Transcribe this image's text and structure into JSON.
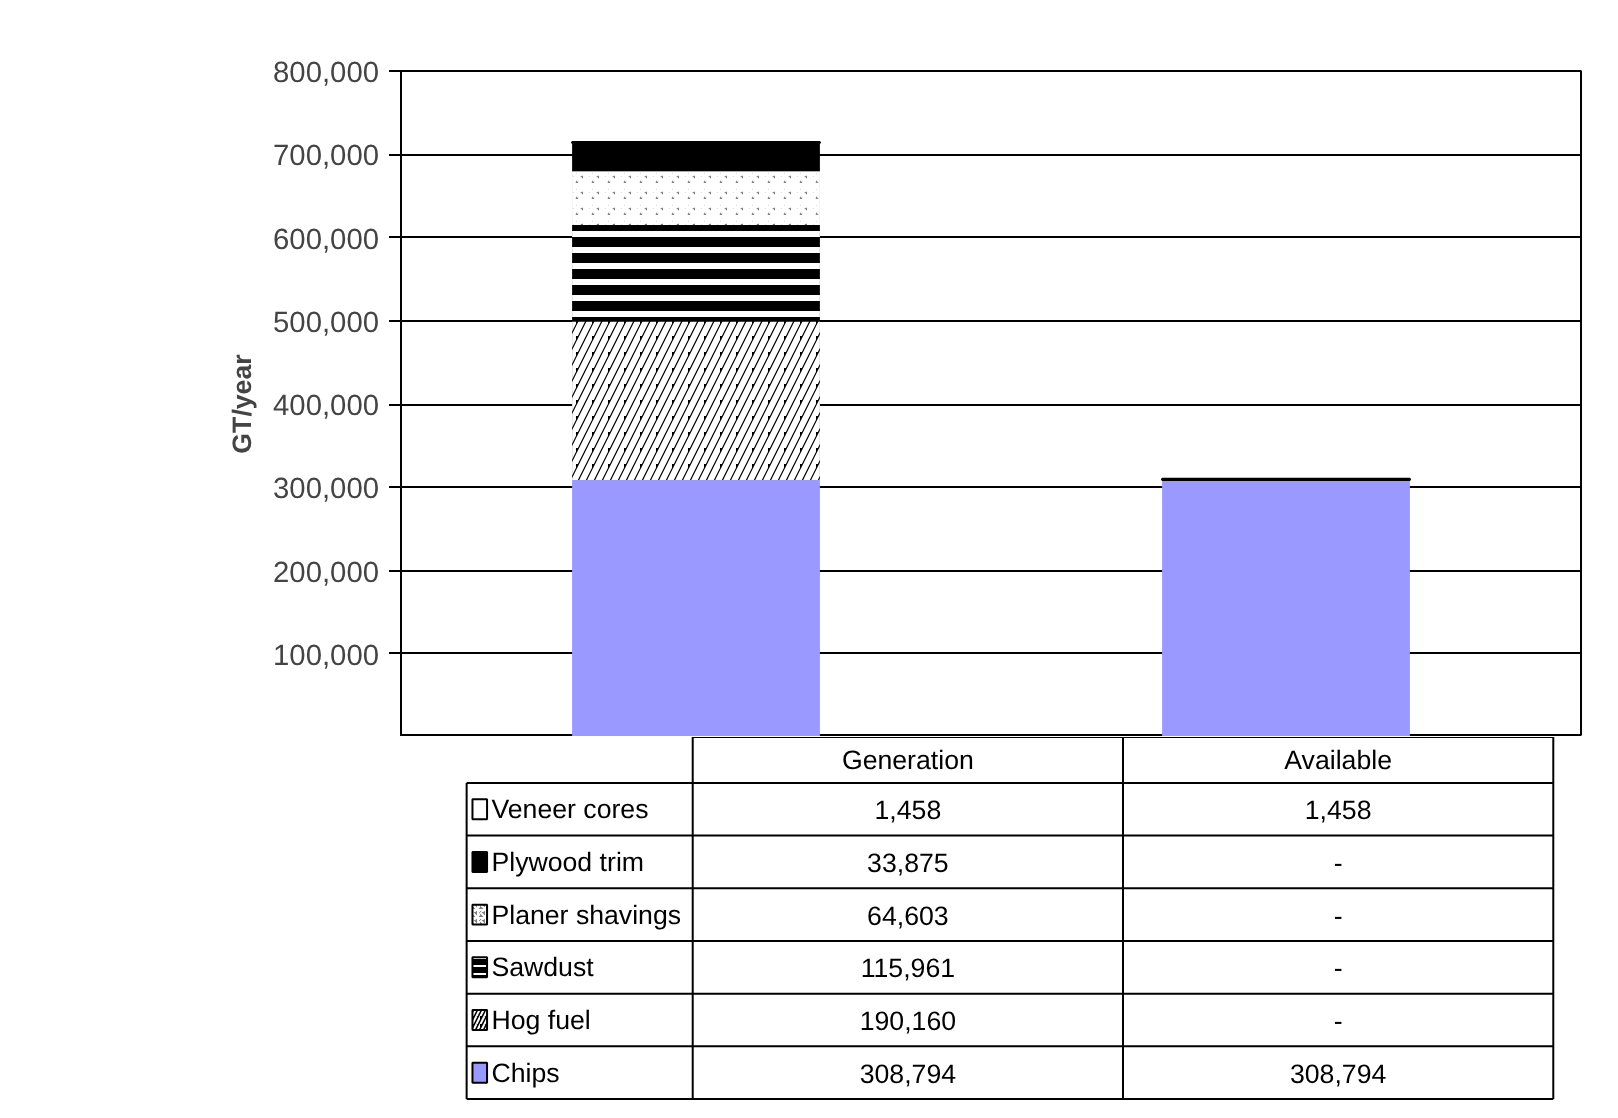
{
  "chart_data": {
    "type": "bar",
    "stacked": true,
    "ylabel": "GT/year",
    "categories": [
      "Generation",
      "Available"
    ],
    "ylim": [
      0,
      800000
    ],
    "yticks": [
      {
        "value": 100000,
        "label": "100,000"
      },
      {
        "value": 200000,
        "label": "200,000"
      },
      {
        "value": 300000,
        "label": "300,000"
      },
      {
        "value": 400000,
        "label": "400,000"
      },
      {
        "value": 500000,
        "label": "500,000"
      },
      {
        "value": 600000,
        "label": "600,000"
      },
      {
        "value": 700000,
        "label": "700,000"
      },
      {
        "value": 800000,
        "label": "800,000"
      }
    ],
    "grid": "y",
    "legend": "bottom",
    "series": [
      {
        "name": "Chips",
        "color": "#9999ff",
        "values": [
          308794,
          308794
        ],
        "value_labels": [
          "308,794",
          "308,794"
        ]
      },
      {
        "name": "Hog fuel",
        "color": "#000000",
        "values": [
          190160,
          0
        ],
        "value_labels": [
          "190,160",
          "-"
        ]
      },
      {
        "name": "Sawdust",
        "color": "#000000",
        "values": [
          115961,
          0
        ],
        "value_labels": [
          "115,961",
          "-"
        ]
      },
      {
        "name": "Planer shavings",
        "color": "#808080",
        "values": [
          64603,
          0
        ],
        "value_labels": [
          "64,603",
          "-"
        ]
      },
      {
        "name": "Plywood trim",
        "color": "#000000",
        "values": [
          33875,
          0
        ],
        "value_labels": [
          "33,875",
          "-"
        ]
      },
      {
        "name": "Veneer cores",
        "color": "#ffffff",
        "values": [
          1458,
          1458
        ],
        "value_labels": [
          "1,458",
          "1,458"
        ]
      }
    ]
  }
}
